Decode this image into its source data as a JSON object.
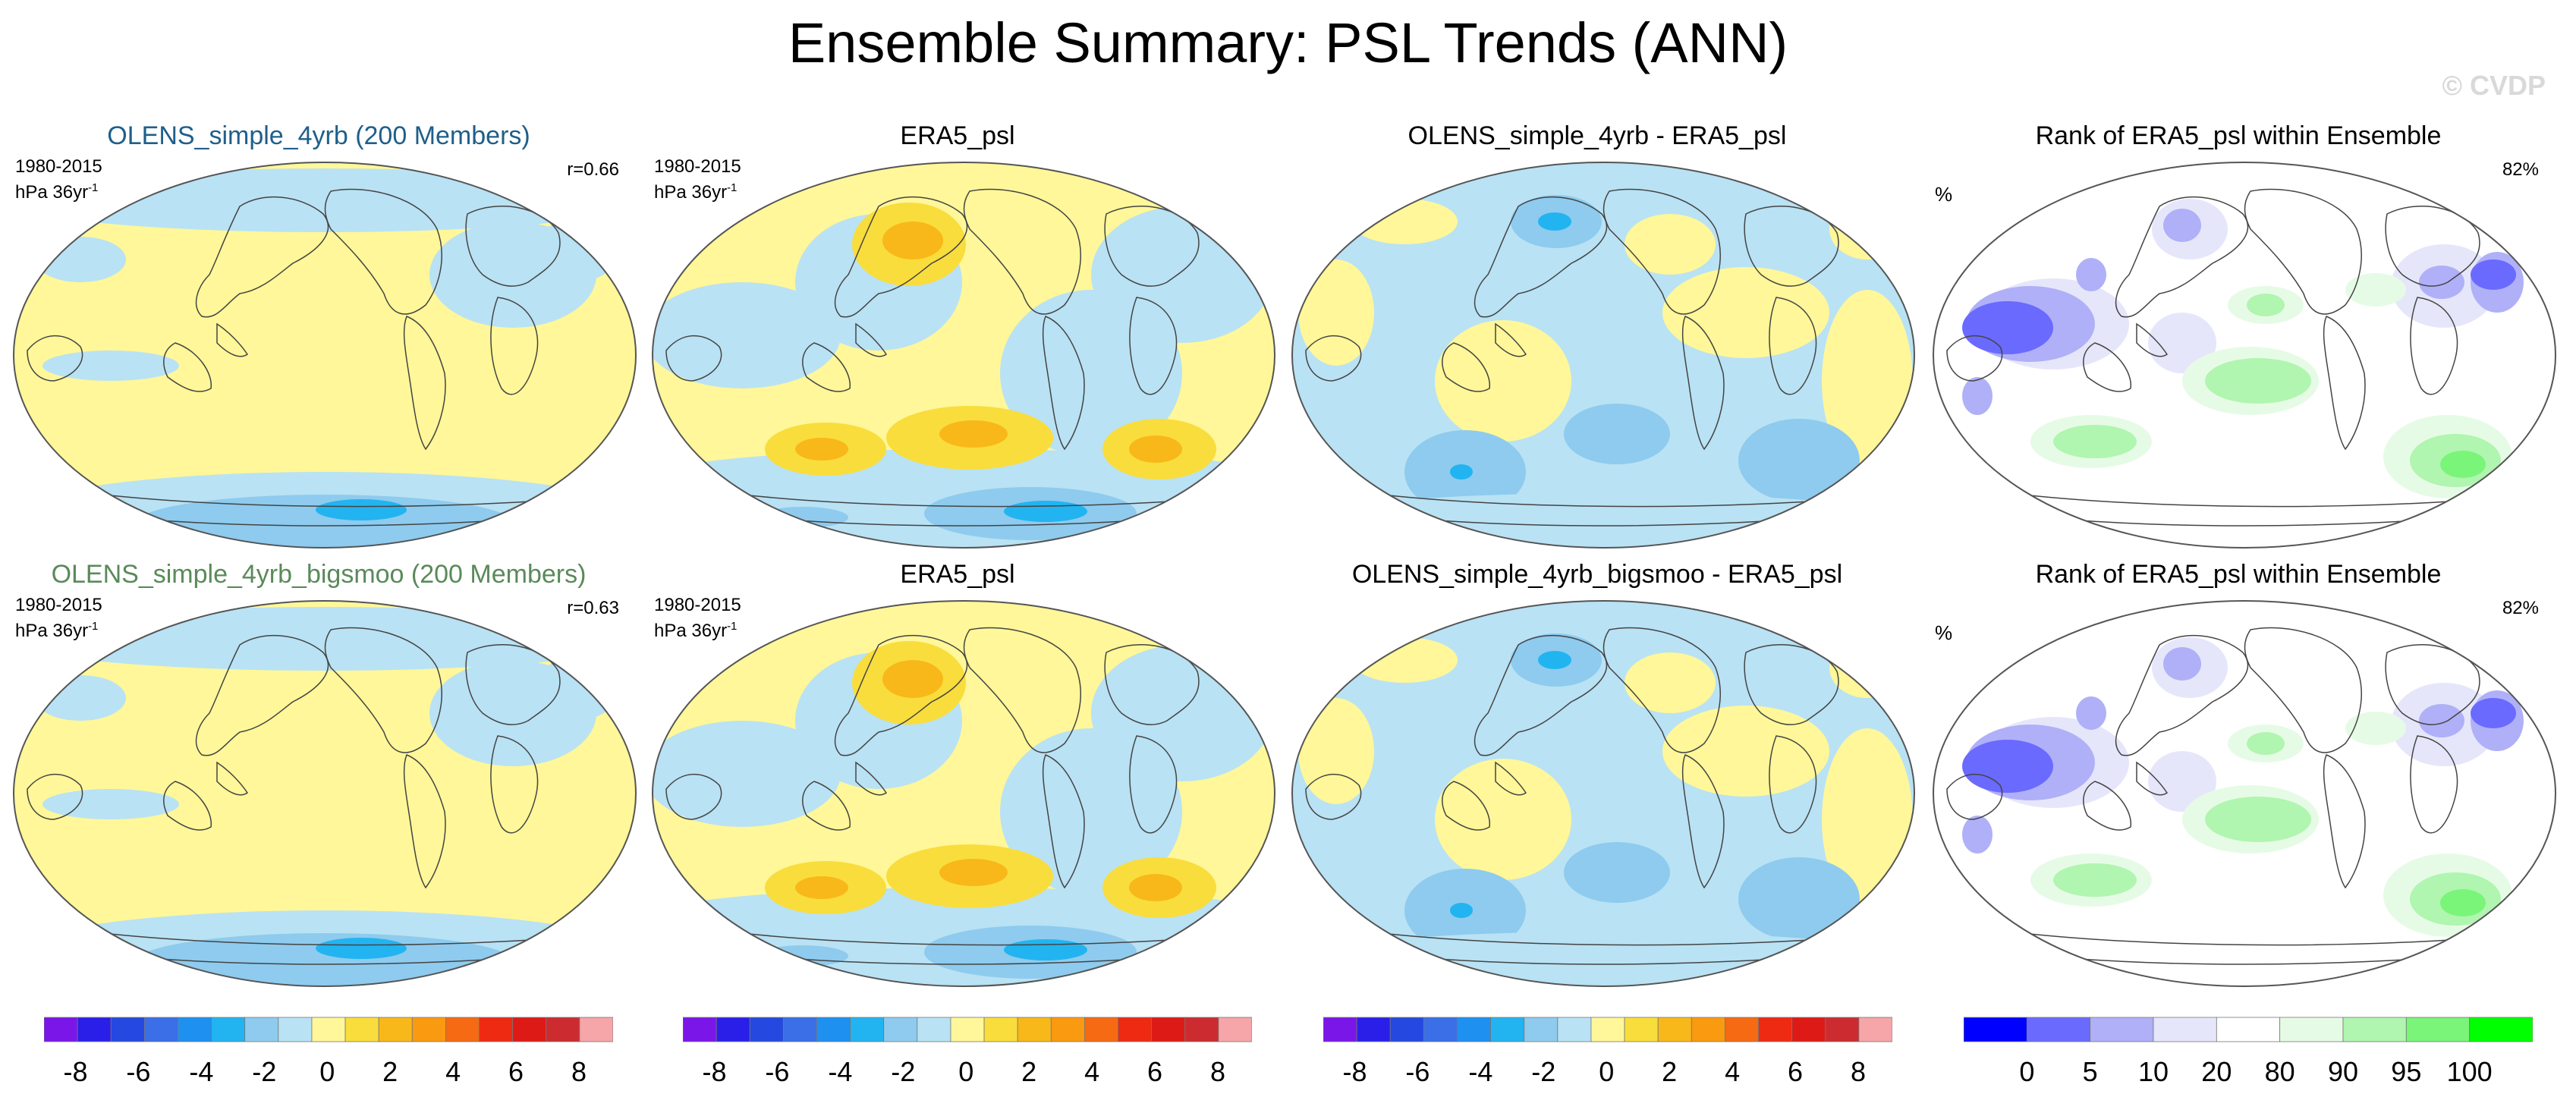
{
  "title": "Ensemble Summary: PSL Trends (ANN)",
  "watermark": "© CVDP",
  "rows": [
    {
      "model_title": "OLENS_simple_4yrb (200 Members)",
      "model_title_color": "#1f5f8b",
      "period": "1980-2015",
      "units_base": "hPa 36yr",
      "units_exp": "-1",
      "r_label": "r=0.66",
      "obs_title": "ERA5_psl",
      "diff_title": "OLENS_simple_4yrb - ERA5_psl",
      "rank_title": "Rank of ERA5_psl within Ensemble",
      "rank_unit": "%",
      "rank_pct": "82%"
    },
    {
      "model_title": "OLENS_simple_4yrb_bigsmoo (200 Members)",
      "model_title_color": "#5a8a5a",
      "period": "1980-2015",
      "units_base": "hPa 36yr",
      "units_exp": "-1",
      "r_label": "r=0.63",
      "obs_title": "ERA5_psl",
      "diff_title": "OLENS_simple_4yrb_bigsmoo - ERA5_psl",
      "rank_title": "Rank of ERA5_psl within Ensemble",
      "rank_unit": "%",
      "rank_pct": "82%"
    }
  ],
  "colorbar_trend": {
    "colors": [
      "#7a16e8",
      "#2a1fe8",
      "#2448e0",
      "#3b6fe8",
      "#1e90f0",
      "#22b4f0",
      "#8ecbee",
      "#b9e2f4",
      "#fff799",
      "#f9dd3c",
      "#f8b81a",
      "#f99a10",
      "#f56a12",
      "#ee2a12",
      "#de1a16",
      "#cc2c30",
      "#f6a5a9"
    ],
    "ticks": [
      "-8",
      "-6",
      "-4",
      "-2",
      "0",
      "2",
      "4",
      "6",
      "8"
    ]
  },
  "colorbar_rank": {
    "colors": [
      "#0000ff",
      "#6a6aff",
      "#b0b0f8",
      "#e6e6fb",
      "#ffffff",
      "#e6fbe6",
      "#b0f5b0",
      "#7af57a",
      "#00ff00"
    ],
    "ticks": [
      "0",
      "5",
      "10",
      "20",
      "80",
      "90",
      "95",
      "100"
    ]
  }
}
